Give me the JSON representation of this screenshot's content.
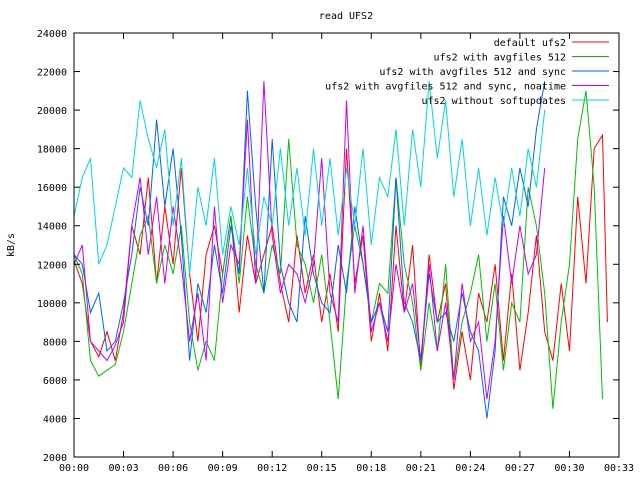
{
  "chart_data": {
    "type": "line",
    "title": "read UFS2",
    "ylabel": "kB/s",
    "xlabel": "",
    "xlim_minutes": [
      0,
      33
    ],
    "ylim": [
      2000,
      24000
    ],
    "y_ticks": [
      2000,
      4000,
      6000,
      8000,
      10000,
      12000,
      14000,
      16000,
      18000,
      20000,
      22000,
      24000
    ],
    "x_ticks": [
      "00:00",
      "00:03",
      "00:06",
      "00:09",
      "00:12",
      "00:15",
      "00:18",
      "00:21",
      "00:24",
      "00:27",
      "00:30",
      "00:33"
    ],
    "grid": false,
    "legend_position": "top-right",
    "series": [
      {
        "name": "default ufs2",
        "color": "#ff0000",
        "x": [
          0.0,
          0.5,
          1.0,
          1.5,
          2.0,
          2.5,
          3.0,
          3.5,
          4.0,
          4.5,
          5.0,
          5.5,
          6.0,
          6.5,
          7.0,
          7.5,
          8.0,
          8.5,
          9.0,
          9.5,
          10.0,
          10.5,
          11.0,
          11.5,
          12.0,
          12.5,
          13.0,
          13.5,
          14.0,
          14.5,
          15.0,
          15.5,
          16.0,
          16.5,
          17.0,
          17.5,
          18.0,
          18.5,
          19.0,
          19.5,
          20.0,
          20.5,
          21.0,
          21.5,
          22.0,
          22.5,
          23.0,
          23.5,
          24.0,
          24.5,
          25.0,
          25.5,
          26.0,
          26.5,
          27.0,
          27.5,
          28.0,
          28.5,
          29.0,
          29.5,
          30.0,
          30.5,
          31.0,
          31.5,
          32.0,
          32.3
        ],
        "values": [
          12200,
          11000,
          8000,
          7200,
          8500,
          7000,
          9500,
          14000,
          12500,
          16500,
          11000,
          15000,
          12000,
          17000,
          11500,
          8000,
          12500,
          14000,
          11500,
          14500,
          9500,
          13500,
          11000,
          12500,
          14000,
          11000,
          9000,
          13500,
          10500,
          12500,
          9000,
          11500,
          8500,
          18000,
          11000,
          13500,
          8000,
          10500,
          7500,
          14000,
          9500,
          13000,
          6500,
          12500,
          9000,
          11000,
          5500,
          8500,
          6000,
          10500,
          9000,
          12000,
          7000,
          11500,
          6500,
          9500,
          13500,
          8500,
          7000,
          11000,
          7500,
          15500,
          11000,
          18000,
          18700,
          9000
        ]
      },
      {
        "name": "ufs2 with avgfiles 512",
        "color": "#00c000",
        "x": [
          0.0,
          0.5,
          1.0,
          1.5,
          2.0,
          2.5,
          3.0,
          3.5,
          4.0,
          4.5,
          5.0,
          5.5,
          6.0,
          6.5,
          7.0,
          7.5,
          8.0,
          8.5,
          9.0,
          9.5,
          10.0,
          10.5,
          11.0,
          11.5,
          12.0,
          12.5,
          13.0,
          13.5,
          14.0,
          14.5,
          15.0,
          15.5,
          16.0,
          16.5,
          17.0,
          17.5,
          18.0,
          18.5,
          19.0,
          19.5,
          20.0,
          20.5,
          21.0,
          21.5,
          22.0,
          22.5,
          23.0,
          23.5,
          24.0,
          24.5,
          25.0,
          25.5,
          26.0,
          26.5,
          27.0,
          27.5,
          28.0,
          28.5,
          29.0,
          29.5,
          30.0,
          30.5,
          31.0,
          31.5,
          32.0
        ],
        "values": [
          12500,
          11500,
          7000,
          6200,
          6500,
          6800,
          8500,
          11000,
          13500,
          14500,
          11000,
          13000,
          11500,
          14000,
          9000,
          6500,
          8000,
          7000,
          11500,
          14500,
          11000,
          15500,
          12000,
          10500,
          13000,
          11500,
          18500,
          13000,
          12000,
          10000,
          12500,
          9000,
          5000,
          11000,
          14000,
          12000,
          9000,
          11000,
          10500,
          16500,
          12000,
          10000,
          6500,
          10000,
          7500,
          12000,
          6000,
          9000,
          10500,
          12500,
          8000,
          11000,
          6500,
          10000,
          9000,
          16000,
          14000,
          10500,
          4500,
          9000,
          12000,
          18500,
          21000,
          16000,
          5000
        ]
      },
      {
        "name": "ufs2 with avgfiles 512 and sync",
        "color": "#0060ff",
        "x": [
          0.0,
          0.5,
          1.0,
          1.5,
          2.0,
          2.5,
          3.0,
          3.5,
          4.0,
          4.5,
          5.0,
          5.5,
          6.0,
          6.5,
          7.0,
          7.5,
          8.0,
          8.5,
          9.0,
          9.5,
          10.0,
          10.5,
          11.0,
          11.5,
          12.0,
          12.5,
          13.0,
          13.5,
          14.0,
          14.5,
          15.0,
          15.5,
          16.0,
          16.5,
          17.0,
          17.5,
          18.0,
          18.5,
          19.0,
          19.5,
          20.0,
          20.5,
          21.0,
          21.5,
          22.0,
          22.5,
          23.0,
          23.5,
          24.0,
          24.5,
          25.0,
          25.5,
          26.0,
          26.5,
          27.0,
          27.5,
          28.0,
          28.5
        ],
        "values": [
          12500,
          12000,
          9500,
          10500,
          7500,
          8000,
          10000,
          12500,
          16000,
          14000,
          19500,
          15000,
          18000,
          13500,
          7000,
          11000,
          9500,
          13000,
          10500,
          14000,
          11500,
          21000,
          15000,
          10500,
          18500,
          12000,
          10000,
          9000,
          14500,
          11500,
          10000,
          9500,
          13000,
          10500,
          15000,
          12000,
          9000,
          10000,
          8500,
          16500,
          10000,
          9000,
          7000,
          11500,
          9000,
          9500,
          8000,
          10500,
          8500,
          7500,
          4000,
          7500,
          15500,
          14000,
          17000,
          15000,
          19000,
          21500
        ]
      },
      {
        "name": "ufs2 with avgfiles 512 and sync, noatime",
        "color": "#c000ff",
        "x": [
          0.0,
          0.5,
          1.0,
          1.5,
          2.0,
          2.5,
          3.0,
          3.5,
          4.0,
          4.5,
          5.0,
          5.5,
          6.0,
          6.5,
          7.0,
          7.5,
          8.0,
          8.5,
          9.0,
          9.5,
          10.0,
          10.5,
          11.0,
          11.5,
          12.0,
          12.5,
          13.0,
          13.5,
          14.0,
          14.5,
          15.0,
          15.5,
          16.0,
          16.5,
          17.0,
          17.5,
          18.0,
          18.5,
          19.0,
          19.5,
          20.0,
          20.5,
          21.0,
          21.5,
          22.0,
          22.5,
          23.0,
          23.5,
          24.0,
          24.5,
          25.0,
          25.5,
          26.0,
          26.5,
          27.0,
          27.5,
          28.0,
          28.5
        ],
        "values": [
          12000,
          13000,
          8000,
          7500,
          7000,
          7800,
          9000,
          14000,
          16500,
          12500,
          15500,
          11000,
          15000,
          12000,
          8000,
          10500,
          7000,
          15000,
          10000,
          13000,
          12000,
          19500,
          11000,
          21500,
          13500,
          10500,
          12000,
          11500,
          10000,
          12000,
          17500,
          10500,
          9000,
          20500,
          10500,
          14000,
          8500,
          10000,
          8000,
          12000,
          9500,
          11000,
          7000,
          12000,
          7500,
          10000,
          6000,
          11000,
          8000,
          9000,
          5000,
          8000,
          14500,
          11000,
          14000,
          11500,
          12500,
          17000
        ]
      },
      {
        "name": "ufs2 without softupdates",
        "color": "#00d8d8",
        "x": [
          0.0,
          0.5,
          1.0,
          1.5,
          2.0,
          2.5,
          3.0,
          3.5,
          4.0,
          4.5,
          5.0,
          5.5,
          6.0,
          6.5,
          7.0,
          7.5,
          8.0,
          8.5,
          9.0,
          9.5,
          10.0,
          10.5,
          11.0,
          11.5,
          12.0,
          12.5,
          13.0,
          13.5,
          14.0,
          14.5,
          15.0,
          15.5,
          16.0,
          16.5,
          17.0,
          17.5,
          18.0,
          18.5,
          19.0,
          19.5,
          20.0,
          20.5,
          21.0,
          21.5,
          22.0,
          22.5,
          23.0,
          23.5,
          24.0,
          24.5,
          25.0,
          25.5,
          26.0,
          26.5,
          27.0,
          27.5,
          28.0,
          28.5
        ],
        "values": [
          14500,
          16500,
          17500,
          12000,
          13000,
          15000,
          17000,
          16500,
          20500,
          18500,
          17000,
          19000,
          14000,
          17500,
          11500,
          16000,
          14000,
          17500,
          12500,
          15000,
          13000,
          17000,
          12500,
          15500,
          14000,
          18000,
          14000,
          17000,
          13500,
          18000,
          14000,
          17500,
          13500,
          17000,
          14000,
          18000,
          13000,
          16500,
          15500,
          19000,
          14000,
          19000,
          16000,
          21500,
          17500,
          20500,
          15500,
          18500,
          14000,
          17000,
          13500,
          16500,
          14000,
          17000,
          14500,
          18000,
          16000,
          20000
        ]
      }
    ]
  }
}
